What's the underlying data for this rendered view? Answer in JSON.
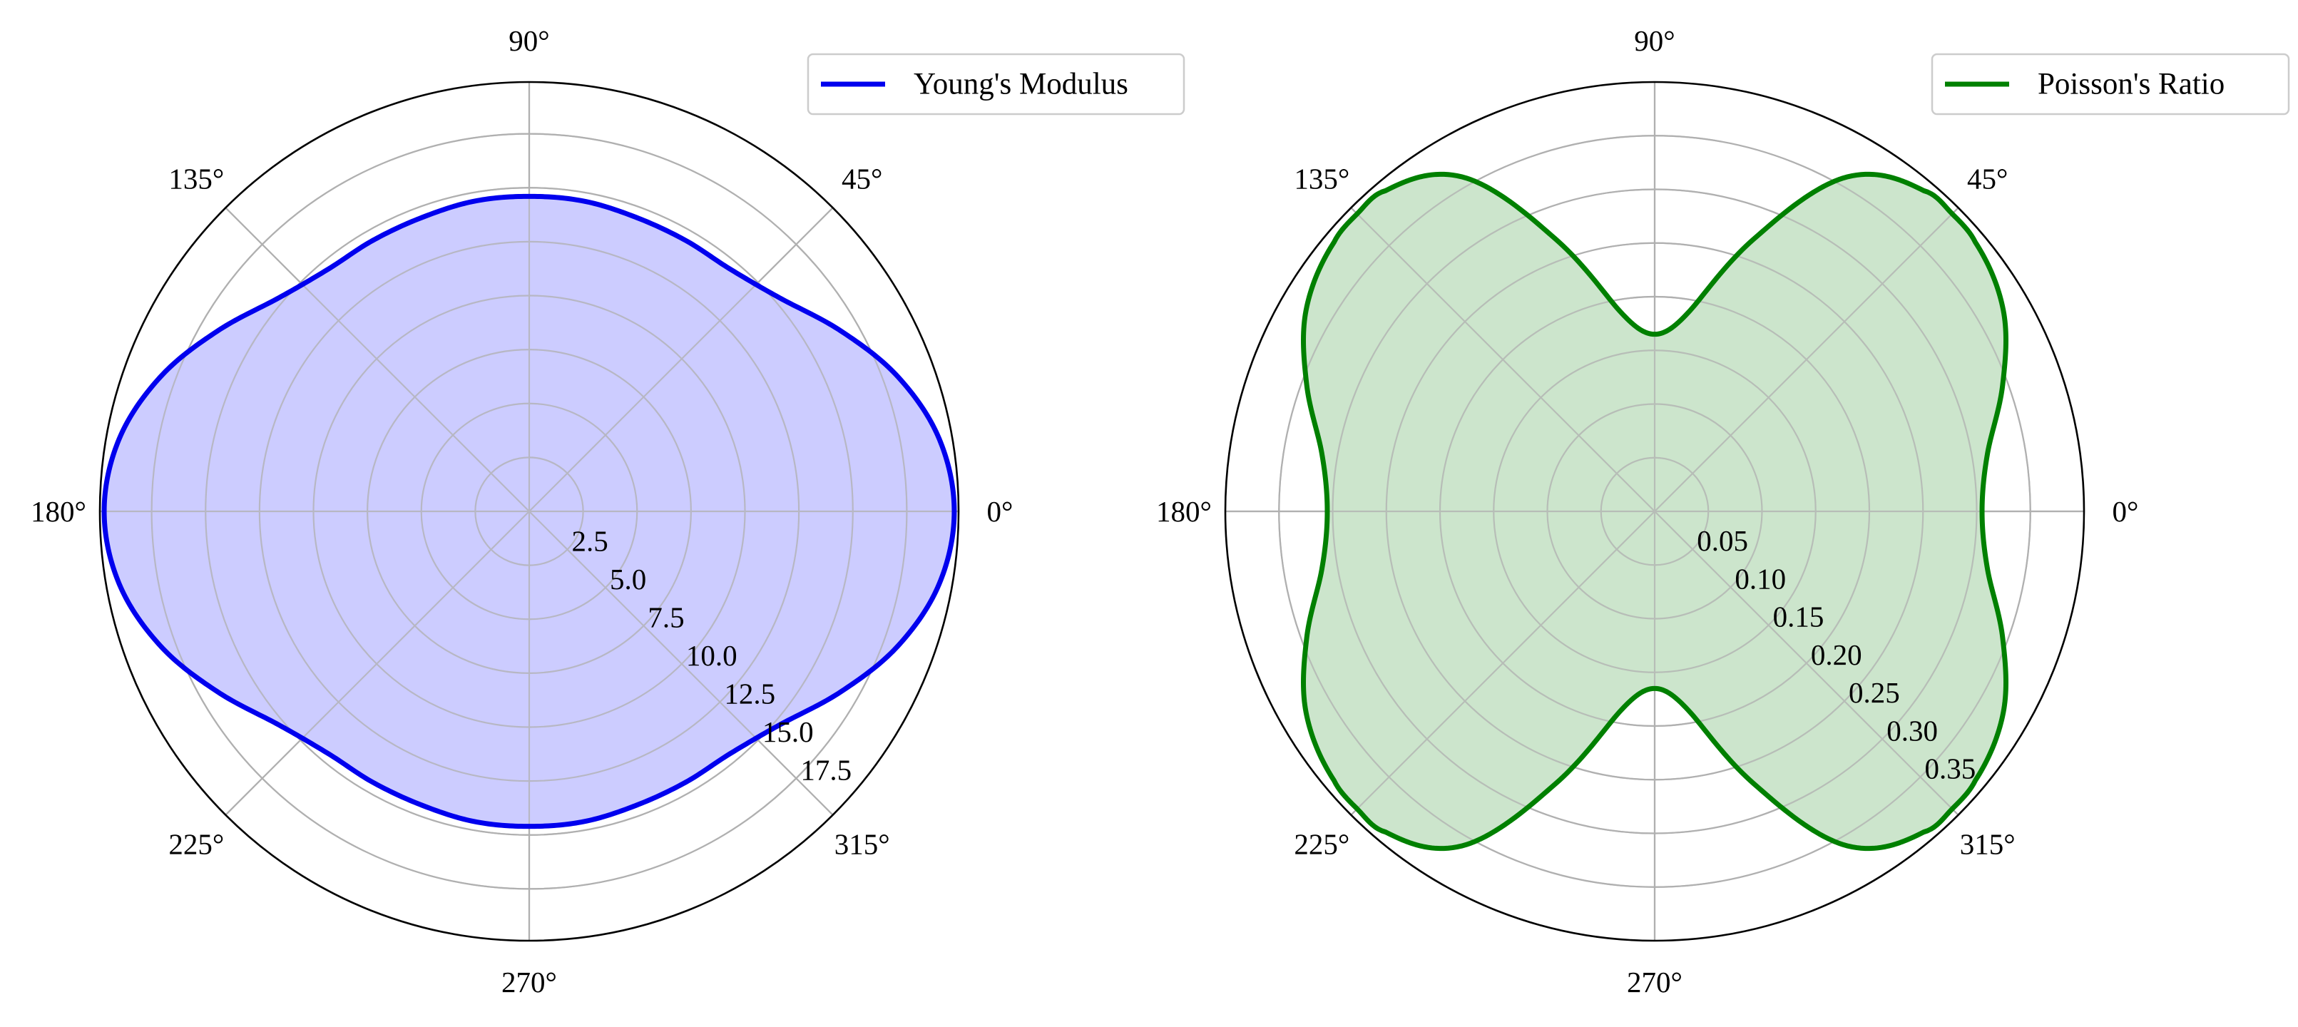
{
  "chart_data": [
    {
      "type": "polar-line",
      "angle_ticks_deg": [
        0,
        45,
        90,
        135,
        180,
        225,
        270,
        315
      ],
      "angle_tick_labels": [
        "0°",
        "45°",
        "90°",
        "135°",
        "180°",
        "225°",
        "270°",
        "315°"
      ],
      "r_ticks": [
        2.5,
        5.0,
        7.5,
        10.0,
        12.5,
        15.0,
        17.5
      ],
      "r_tick_labels": [
        "2.5",
        "5.0",
        "7.5",
        "10.0",
        "12.5",
        "15.0",
        "17.5"
      ],
      "r_label_angle_deg": -45,
      "rlim": [
        0,
        19.9
      ],
      "grid": true,
      "legend_position": "upper-right",
      "fill": true,
      "fill_color": "#ccccff",
      "series": [
        {
          "name": "Young's Modulus",
          "color": "#0000ee",
          "theta_deg": [
            0,
            10,
            20,
            30,
            40,
            50,
            60,
            70,
            80,
            90,
            100,
            110,
            120,
            130,
            140,
            150,
            160,
            170,
            180,
            190,
            200,
            210,
            220,
            230,
            240,
            250,
            260,
            270,
            280,
            290,
            300,
            310,
            320,
            330,
            340,
            350,
            360
          ],
          "r": [
            19.7,
            19.3,
            18.2,
            16.7,
            15.3,
            14.6,
            14.5,
            14.5,
            14.6,
            14.6,
            14.6,
            14.5,
            14.5,
            14.6,
            15.3,
            16.7,
            18.2,
            19.3,
            19.7,
            19.3,
            18.2,
            16.7,
            15.3,
            14.6,
            14.5,
            14.5,
            14.6,
            14.6,
            14.6,
            14.5,
            14.5,
            14.6,
            15.3,
            16.7,
            18.2,
            19.3,
            19.7
          ]
        }
      ]
    },
    {
      "type": "polar-line",
      "angle_ticks_deg": [
        0,
        45,
        90,
        135,
        180,
        225,
        270,
        315
      ],
      "angle_tick_labels": [
        "0°",
        "45°",
        "90°",
        "135°",
        "180°",
        "225°",
        "270°",
        "315°"
      ],
      "r_ticks": [
        0.05,
        0.1,
        0.15,
        0.2,
        0.25,
        0.3,
        0.35
      ],
      "r_tick_labels": [
        "0.05",
        "0.10",
        "0.15",
        "0.20",
        "0.25",
        "0.30",
        "0.35"
      ],
      "r_label_angle_deg": -45,
      "rlim": [
        0,
        0.4
      ],
      "grid": true,
      "legend_position": "upper-right",
      "fill": true,
      "fill_color": "#cce5cc",
      "series": [
        {
          "name": "Poisson's Ratio",
          "color": "#008000",
          "theta_deg": [
            0,
            10,
            20,
            30,
            40,
            45,
            50,
            60,
            70,
            80,
            90,
            100,
            110,
            120,
            130,
            135,
            140,
            150,
            160,
            170,
            180,
            190,
            200,
            210,
            220,
            225,
            230,
            240,
            250,
            260,
            270,
            280,
            290,
            300,
            310,
            315,
            320,
            330,
            340,
            350,
            360
          ],
          "r": [
            0.305,
            0.315,
            0.345,
            0.375,
            0.39,
            0.392,
            0.39,
            0.36,
            0.27,
            0.19,
            0.165,
            0.19,
            0.27,
            0.36,
            0.39,
            0.392,
            0.39,
            0.375,
            0.345,
            0.315,
            0.305,
            0.315,
            0.345,
            0.375,
            0.39,
            0.392,
            0.39,
            0.36,
            0.27,
            0.19,
            0.165,
            0.19,
            0.27,
            0.36,
            0.39,
            0.392,
            0.39,
            0.375,
            0.345,
            0.315,
            0.305
          ]
        }
      ]
    }
  ]
}
